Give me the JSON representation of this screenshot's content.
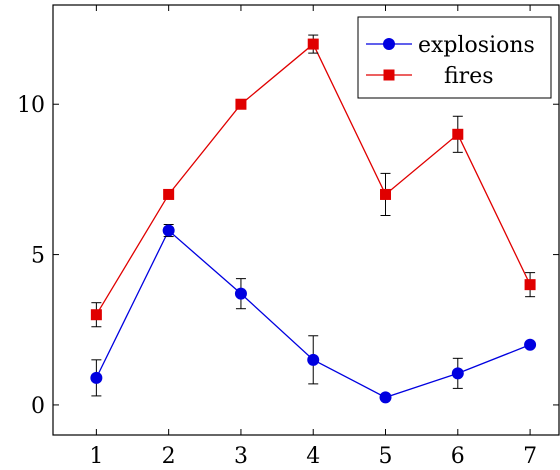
{
  "chart_data": {
    "type": "line",
    "title": "",
    "xlabel": "",
    "ylabel": "",
    "x": [
      1,
      2,
      3,
      4,
      5,
      6,
      7
    ],
    "xlim": [
      0.4,
      7.4
    ],
    "ylim": [
      -1,
      13.3
    ],
    "xticks": [
      1,
      2,
      3,
      4,
      5,
      6,
      7
    ],
    "yticks": [
      0,
      5,
      10
    ],
    "grid": false,
    "legend_position": "top-right",
    "series": [
      {
        "name": "explosions",
        "color": "#0000e0",
        "marker": "circle",
        "values": [
          0.9,
          5.8,
          3.7,
          1.5,
          0.25,
          1.05,
          2.0
        ],
        "error": [
          0.6,
          0.2,
          0.5,
          0.8,
          0.05,
          0.5,
          0.05
        ]
      },
      {
        "name": "fires",
        "color": "#e00000",
        "marker": "square",
        "values": [
          3.0,
          7.0,
          10.0,
          12.0,
          7.0,
          9.0,
          4.0
        ],
        "error": [
          0.4,
          0.05,
          0.05,
          0.3,
          0.7,
          0.6,
          0.4
        ]
      }
    ]
  }
}
